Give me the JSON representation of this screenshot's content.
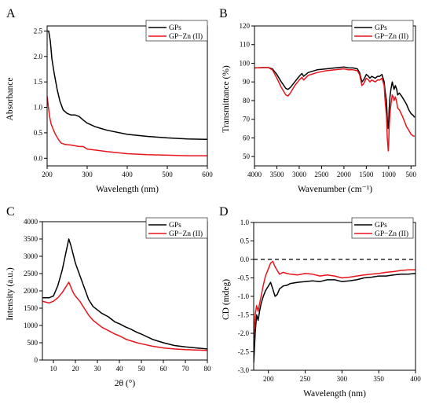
{
  "colors": {
    "gps": "#000000",
    "gpzn": "#e8141c",
    "zero_line": "#000000"
  },
  "legend_entries": [
    "GPs",
    "GP−Zn (II)"
  ],
  "chart_data": [
    {
      "panel_letter": "A",
      "type": "line",
      "xlabel": "Wavelength (nm)",
      "ylabel": "Absorbance",
      "xlim": [
        200,
        600
      ],
      "ylim": [
        -0.15,
        2.6
      ],
      "xticks": [
        200,
        300,
        400,
        500,
        600
      ],
      "yticks": [
        0.0,
        0.5,
        1.0,
        1.5,
        2.0,
        2.5
      ],
      "ytick_labels": [
        "0.0",
        "0.5",
        "1.0",
        "1.5",
        "2.0",
        "2.5"
      ],
      "legend_placement": "top-right",
      "series": [
        {
          "name": "GPs",
          "color": "#000000",
          "x": [
            200,
            204,
            208,
            212,
            218,
            225,
            232,
            240,
            250,
            260,
            270,
            280,
            290,
            300,
            320,
            350,
            400,
            450,
            500,
            550,
            600
          ],
          "y": [
            2.5,
            2.5,
            2.3,
            1.95,
            1.65,
            1.35,
            1.12,
            0.95,
            0.88,
            0.85,
            0.85,
            0.82,
            0.75,
            0.69,
            0.62,
            0.55,
            0.47,
            0.43,
            0.4,
            0.38,
            0.37
          ]
        },
        {
          "name": "GP−Zn (II)",
          "color": "#e8141c",
          "x": [
            200,
            203,
            206,
            210,
            215,
            220,
            228,
            235,
            245,
            260,
            280,
            290,
            300,
            320,
            350,
            400,
            450,
            500,
            550,
            600
          ],
          "y": [
            1.22,
            1.02,
            0.82,
            0.67,
            0.57,
            0.48,
            0.37,
            0.3,
            0.27,
            0.26,
            0.23,
            0.23,
            0.18,
            0.16,
            0.13,
            0.09,
            0.07,
            0.06,
            0.05,
            0.05
          ]
        }
      ]
    },
    {
      "panel_letter": "B",
      "type": "line",
      "xlabel": "Wavenumber (cm⁻¹)",
      "ylabel": "Transmittance (%)",
      "xlim": [
        4000,
        400
      ],
      "ylim": [
        45,
        120
      ],
      "xticks": [
        4000,
        3500,
        3000,
        2500,
        2000,
        1500,
        1000,
        500
      ],
      "yticks": [
        50,
        60,
        70,
        80,
        90,
        100,
        110,
        120
      ],
      "legend_placement": "top-right",
      "series": [
        {
          "name": "GPs",
          "color": "#000000",
          "x": [
            4000,
            3700,
            3600,
            3500,
            3400,
            3300,
            3250,
            3200,
            3100,
            3000,
            2940,
            2900,
            2800,
            2600,
            2400,
            2200,
            2000,
            1900,
            1800,
            1700,
            1650,
            1600,
            1560,
            1500,
            1450,
            1420,
            1380,
            1300,
            1250,
            1200,
            1150,
            1100,
            1080,
            1050,
            1030,
            1010,
            1000,
            990,
            970,
            950,
            920,
            900,
            880,
            850,
            820,
            800,
            760,
            700,
            650,
            600,
            550,
            500,
            450,
            420
          ],
          "y": [
            97.5,
            97.8,
            97,
            94,
            90,
            86.5,
            86,
            87,
            90,
            93,
            94.5,
            93,
            95,
            96.5,
            97,
            97.5,
            98,
            97.5,
            97.5,
            97,
            95,
            90,
            91,
            94,
            93,
            92,
            93,
            92,
            93,
            93,
            94,
            90,
            85,
            80,
            70,
            65,
            68,
            75,
            82,
            86,
            90,
            88,
            86,
            88,
            86,
            83,
            84,
            82,
            80,
            78,
            75,
            73,
            72,
            71
          ]
        },
        {
          "name": "GP−Zn (II)",
          "color": "#e8141c",
          "x": [
            4000,
            3700,
            3600,
            3500,
            3400,
            3300,
            3250,
            3200,
            3100,
            3000,
            2940,
            2900,
            2800,
            2600,
            2400,
            2200,
            2000,
            1900,
            1800,
            1700,
            1650,
            1600,
            1560,
            1500,
            1450,
            1420,
            1380,
            1300,
            1250,
            1200,
            1150,
            1100,
            1080,
            1050,
            1030,
            1010,
            1000,
            990,
            970,
            950,
            920,
            900,
            880,
            850,
            820,
            800,
            760,
            700,
            650,
            600,
            550,
            500,
            450,
            420
          ],
          "y": [
            97.5,
            97.8,
            96.5,
            92,
            87,
            83,
            82.5,
            84,
            88,
            91,
            92.5,
            91,
            93.5,
            95,
            96,
            96.5,
            97,
            96.5,
            96.5,
            96,
            94,
            88,
            89,
            92,
            91,
            90,
            91,
            90,
            91,
            91,
            92,
            88,
            80,
            72,
            60,
            53,
            56,
            65,
            73,
            78,
            83,
            82,
            80,
            82,
            79,
            76,
            75,
            72,
            69,
            66,
            64,
            62,
            61,
            61
          ]
        }
      ]
    },
    {
      "panel_letter": "C",
      "type": "line",
      "xlabel": "2θ (°)",
      "ylabel": "Intensity (a.u.)",
      "xlim": [
        5,
        80
      ],
      "ylim": [
        0,
        4000
      ],
      "xticks": [
        10,
        20,
        30,
        40,
        50,
        60,
        70,
        80
      ],
      "yticks": [
        0,
        500,
        1000,
        1500,
        2000,
        2500,
        3000,
        3500,
        4000
      ],
      "legend_placement": "top-right",
      "series": [
        {
          "name": "GPs",
          "color": "#000000",
          "x": [
            5,
            8,
            10,
            12,
            14,
            15,
            16,
            17,
            18,
            19,
            20,
            22,
            24,
            26,
            28,
            30,
            32,
            35,
            38,
            40,
            43,
            45,
            48,
            50,
            55,
            60,
            65,
            70,
            75,
            80
          ],
          "y": [
            1800,
            1800,
            1850,
            2150,
            2600,
            2900,
            3200,
            3500,
            3300,
            3050,
            2800,
            2450,
            2100,
            1750,
            1550,
            1450,
            1350,
            1250,
            1100,
            1050,
            950,
            900,
            800,
            750,
            600,
            500,
            420,
            380,
            350,
            320
          ]
        },
        {
          "name": "GP−Zn (II)",
          "color": "#e8141c",
          "x": [
            5,
            8,
            10,
            12,
            14,
            15,
            16,
            17,
            18,
            19,
            20,
            22,
            24,
            26,
            28,
            30,
            32,
            35,
            38,
            40,
            43,
            45,
            48,
            50,
            55,
            60,
            65,
            70,
            75,
            80
          ],
          "y": [
            1700,
            1650,
            1700,
            1800,
            1950,
            2050,
            2150,
            2250,
            2100,
            1950,
            1850,
            1700,
            1500,
            1300,
            1150,
            1050,
            950,
            850,
            750,
            700,
            600,
            560,
            500,
            470,
            400,
            350,
            320,
            300,
            290,
            280
          ]
        }
      ]
    },
    {
      "panel_letter": "D",
      "type": "line",
      "xlabel": "Wavelength (nm)",
      "ylabel": "CD (mdeg)",
      "xlim": [
        180,
        400
      ],
      "ylim": [
        -3.0,
        1.0
      ],
      "xticks": [
        200,
        250,
        300,
        350,
        400
      ],
      "yticks": [
        -3.0,
        -2.5,
        -2.0,
        -1.5,
        -1.0,
        -0.5,
        0.0,
        0.5,
        1.0
      ],
      "ytick_labels": [
        "-3.0",
        "-2.5",
        "-2.0",
        "-1.5",
        "-1.0",
        "-0.5",
        "0.0",
        "0.5",
        "1.0"
      ],
      "zero_line": 0,
      "legend_placement": "top-right",
      "series": [
        {
          "name": "GPs",
          "color": "#000000",
          "x": [
            180,
            182,
            184,
            186,
            188,
            190,
            193,
            196,
            200,
            203,
            206,
            209,
            212,
            215,
            220,
            225,
            230,
            240,
            250,
            260,
            270,
            280,
            290,
            300,
            310,
            320,
            330,
            340,
            350,
            360,
            370,
            380,
            390,
            400
          ],
          "y": [
            -2.8,
            -2.0,
            -1.5,
            -1.65,
            -1.4,
            -1.2,
            -1.0,
            -0.85,
            -0.72,
            -0.62,
            -0.8,
            -1.0,
            -0.95,
            -0.8,
            -0.72,
            -0.7,
            -0.65,
            -0.62,
            -0.6,
            -0.58,
            -0.6,
            -0.55,
            -0.55,
            -0.6,
            -0.58,
            -0.55,
            -0.5,
            -0.48,
            -0.45,
            -0.45,
            -0.42,
            -0.4,
            -0.4,
            -0.38
          ]
        },
        {
          "name": "GP−Zn (II)",
          "color": "#e8141c",
          "x": [
            180,
            182,
            184,
            186,
            188,
            190,
            193,
            196,
            200,
            203,
            206,
            209,
            212,
            215,
            220,
            225,
            230,
            240,
            250,
            260,
            270,
            280,
            290,
            300,
            310,
            320,
            330,
            340,
            350,
            360,
            370,
            380,
            390,
            400
          ],
          "y": [
            -2.2,
            -1.5,
            -1.25,
            -1.4,
            -1.2,
            -1.0,
            -0.7,
            -0.45,
            -0.25,
            -0.1,
            -0.05,
            -0.2,
            -0.3,
            -0.4,
            -0.35,
            -0.38,
            -0.4,
            -0.42,
            -0.38,
            -0.4,
            -0.45,
            -0.42,
            -0.45,
            -0.5,
            -0.48,
            -0.45,
            -0.42,
            -0.4,
            -0.38,
            -0.35,
            -0.33,
            -0.3,
            -0.28,
            -0.28
          ]
        }
      ]
    }
  ]
}
